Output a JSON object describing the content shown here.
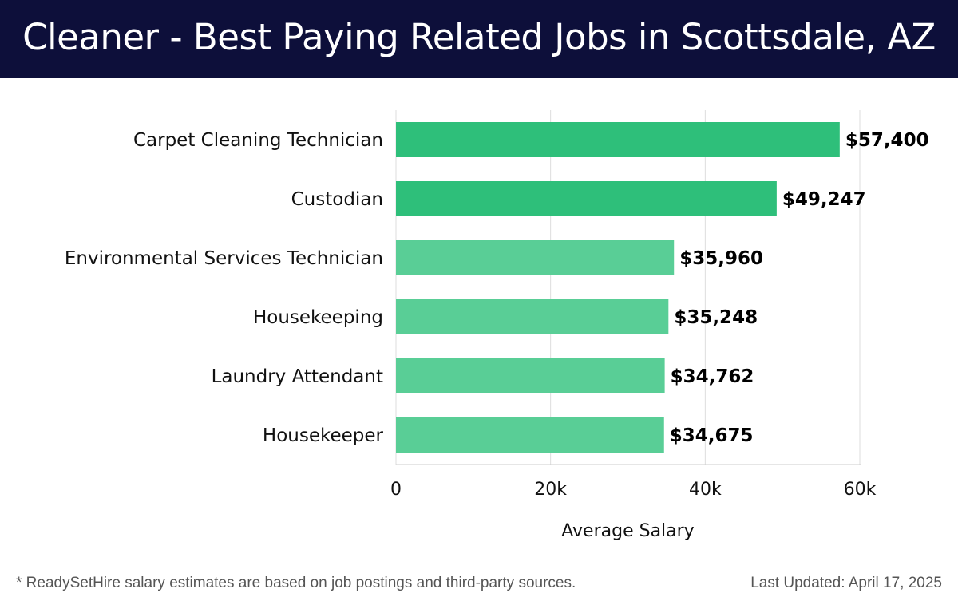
{
  "header": {
    "title": "Cleaner - Best Paying Related Jobs in Scottsdale, AZ"
  },
  "footer": {
    "note": "* ReadySetHire salary estimates are based on job postings and third-party sources.",
    "updated": "Last Updated: April 17, 2025"
  },
  "colors": {
    "header_bg": "#0d0f3a",
    "bar_top": "#2ebf7a",
    "bar_other": "#59ce96",
    "grid": "#dddddd"
  },
  "chart_data": {
    "type": "bar",
    "orientation": "horizontal",
    "categories": [
      "Carpet Cleaning Technician",
      "Custodian",
      "Environmental Services Technician",
      "Housekeeping",
      "Laundry Attendant",
      "Housekeeper"
    ],
    "values": [
      57400,
      49247,
      35960,
      35248,
      34762,
      34675
    ],
    "value_labels": [
      "$57,400",
      "$49,247",
      "$35,960",
      "$35,248",
      "$34,762",
      "$34,675"
    ],
    "highlight_count": 2,
    "xlabel": "Average Salary",
    "xlim": [
      0,
      60000
    ],
    "xticks": [
      0,
      20000,
      40000,
      60000
    ],
    "xtick_labels": [
      "0",
      "20k",
      "40k",
      "60k"
    ],
    "grid": true
  }
}
